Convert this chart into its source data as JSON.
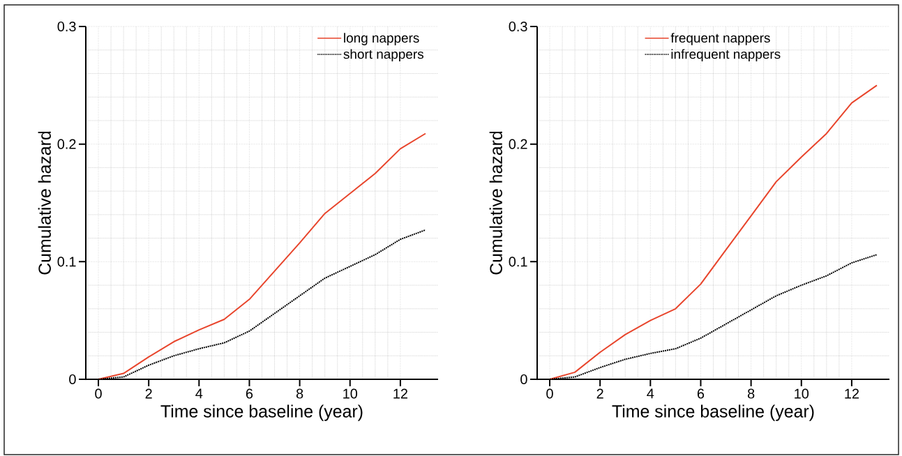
{
  "chart_data": [
    {
      "type": "line",
      "xlabel": "Time since baseline (year)",
      "ylabel": "Cumulative hazard",
      "x": [
        0,
        1,
        2,
        3,
        4,
        5,
        6,
        7,
        8,
        9,
        10,
        11,
        12,
        13
      ],
      "series": [
        {
          "name": "long nappers",
          "color": "#e8452c",
          "line_style": "solid",
          "values": [
            0,
            0.005,
            0.019,
            0.032,
            0.042,
            0.051,
            0.068,
            0.092,
            0.116,
            0.141,
            0.158,
            0.175,
            0.196,
            0.209
          ]
        },
        {
          "name": "short nappers",
          "color": "#000000",
          "line_style": "dotted",
          "values": [
            0,
            0.002,
            0.012,
            0.02,
            0.026,
            0.031,
            0.041,
            0.056,
            0.071,
            0.086,
            0.096,
            0.106,
            0.119,
            0.127
          ]
        }
      ],
      "xlim": [
        -0.5,
        13.5
      ],
      "ylim": [
        0,
        0.3
      ],
      "xticks": [
        0,
        2,
        4,
        6,
        8,
        10,
        12
      ],
      "yticks": [
        0,
        0.1,
        0.2,
        0.3
      ],
      "grid": true,
      "legend": "top right"
    },
    {
      "type": "line",
      "xlabel": "Time since baseline (year)",
      "ylabel": "Cumulative hazard",
      "x": [
        0,
        1,
        2,
        3,
        4,
        5,
        6,
        7,
        8,
        9,
        10,
        11,
        12,
        13
      ],
      "series": [
        {
          "name": "frequent nappers",
          "color": "#e8452c",
          "line_style": "solid",
          "values": [
            0,
            0.006,
            0.023,
            0.038,
            0.05,
            0.06,
            0.081,
            0.11,
            0.139,
            0.168,
            0.189,
            0.209,
            0.235,
            0.25
          ]
        },
        {
          "name": "infrequent nappers",
          "color": "#000000",
          "line_style": "dotted",
          "values": [
            0,
            0.002,
            0.01,
            0.017,
            0.022,
            0.026,
            0.035,
            0.047,
            0.059,
            0.071,
            0.08,
            0.088,
            0.099,
            0.106
          ]
        }
      ],
      "xlim": [
        -0.5,
        13.5
      ],
      "ylim": [
        0,
        0.3
      ],
      "xticks": [
        0,
        2,
        4,
        6,
        8,
        10,
        12
      ],
      "yticks": [
        0,
        0.1,
        0.2,
        0.3
      ],
      "grid": true,
      "legend": "top"
    }
  ]
}
